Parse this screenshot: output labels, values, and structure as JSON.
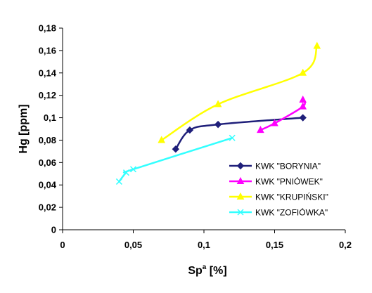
{
  "chart_data": {
    "type": "line",
    "title": "",
    "xlabel": "Sp",
    "xlabel_superscript": "a",
    "xlabel_suffix": " [%]",
    "ylabel": "Hg [ppm]",
    "xlim": [
      0,
      0.2
    ],
    "ylim": [
      0,
      0.18
    ],
    "grid": false,
    "legend_placement": "bottom-right",
    "x_tick_values": [
      0,
      0.05,
      0.1,
      0.15,
      0.2
    ],
    "x_tick_labels": [
      "0",
      "0,05",
      "0,1",
      "0,15",
      "0,2"
    ],
    "y_tick_values": [
      0,
      0.02,
      0.04,
      0.06,
      0.08,
      0.1,
      0.12,
      0.14,
      0.16,
      0.18
    ],
    "y_tick_labels": [
      "0",
      "0,02",
      "0,04",
      "0,06",
      "0,08",
      "0,1",
      "0,12",
      "0,14",
      "0,16",
      "0,18"
    ],
    "series": [
      {
        "name": "KWK \"BORYNIA\"",
        "color": "#1f1f7a",
        "marker": "diamond",
        "x": [
          0.08,
          0.09,
          0.11,
          0.17
        ],
        "y": [
          0.072,
          0.089,
          0.094,
          0.1
        ]
      },
      {
        "name": "KWK \"PNIÓWEK\"",
        "color": "#ff00ff",
        "marker": "triangle",
        "x": [
          0.14,
          0.15,
          0.17,
          0.17
        ],
        "y": [
          0.089,
          0.095,
          0.11,
          0.116
        ]
      },
      {
        "name": "KWK \"KRUPIŃSKI\"",
        "color": "#ffff00",
        "marker": "triangle",
        "x": [
          0.07,
          0.11,
          0.17,
          0.18
        ],
        "y": [
          0.08,
          0.112,
          0.14,
          0.164
        ]
      },
      {
        "name": "KWK \"ZOFIÓWKA\"",
        "color": "#33ffff",
        "marker": "x",
        "x": [
          0.04,
          0.045,
          0.05,
          0.12
        ],
        "y": [
          0.043,
          0.051,
          0.054,
          0.082
        ]
      }
    ]
  }
}
